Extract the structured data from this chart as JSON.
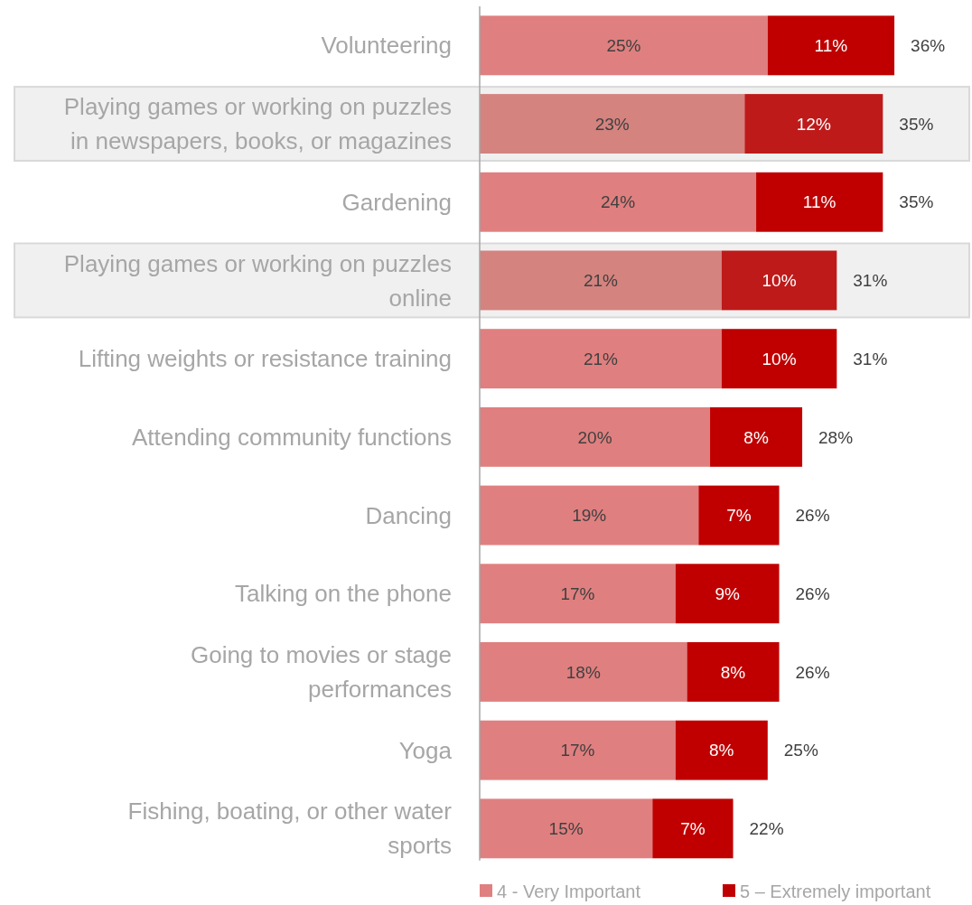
{
  "chart_data": {
    "type": "bar",
    "orientation": "horizontal",
    "stacked": true,
    "categories": [
      "Volunteering",
      "Playing games or working on puzzles\nin newspapers, books, or magazines",
      "Gardening",
      "Playing games or working on puzzles\nonline",
      "Lifting weights or resistance training",
      "Attending community functions",
      "Dancing",
      "Talking on the phone",
      "Going to movies or stage\nperformances",
      "Yoga",
      "Fishing, boating, or other water\nsports"
    ],
    "series": [
      {
        "name": "4 - Very Important",
        "color": "#e07f7f",
        "colors": [
          "#e07f7f",
          "#d4837f",
          "#e07f7f",
          "#d4837f",
          "#e07f7f",
          "#e07f7f",
          "#e07f7f",
          "#e07f7f",
          "#e07f7f",
          "#e07f7f",
          "#e07f7f"
        ],
        "values": [
          25,
          23,
          24,
          21,
          21,
          20,
          19,
          17,
          18,
          17,
          15
        ],
        "value_labels": [
          "25%",
          "23%",
          "24%",
          "21%",
          "21%",
          "20%",
          "19%",
          "17%",
          "18%",
          "17%",
          "15%"
        ]
      },
      {
        "name": "5 – Extremely important",
        "color": "#c00000",
        "colors": [
          "#c00000",
          "#be1a1a",
          "#c00000",
          "#be1a1a",
          "#c00000",
          "#c00000",
          "#c00000",
          "#c00000",
          "#c00000",
          "#c00000",
          "#c00000"
        ],
        "values": [
          11,
          12,
          11,
          10,
          10,
          8,
          7,
          9,
          8,
          8,
          7
        ],
        "value_labels": [
          "11%",
          "12%",
          "11%",
          "10%",
          "10%",
          "8%",
          "7%",
          "9%",
          "8%",
          "8%",
          "7%"
        ]
      }
    ],
    "totals": [
      "36%",
      "35%",
      "35%",
      "31%",
      "31%",
      "28%",
      "26%",
      "26%",
      "26%",
      "25%",
      "22%"
    ],
    "bands": [
      {
        "axis": "y",
        "from": "Playing games or working on puzzles\nin newspapers, books, or magazines",
        "to": "Playing games or working on puzzles\nin newspapers, books, or magazines",
        "color": "#f0f0f0"
      },
      {
        "axis": "y",
        "from": "Playing games or working on puzzles\nonline",
        "to": "Playing games or working on puzzles\nonline",
        "color": "#f0f0f0"
      }
    ],
    "legend": "bottom"
  }
}
